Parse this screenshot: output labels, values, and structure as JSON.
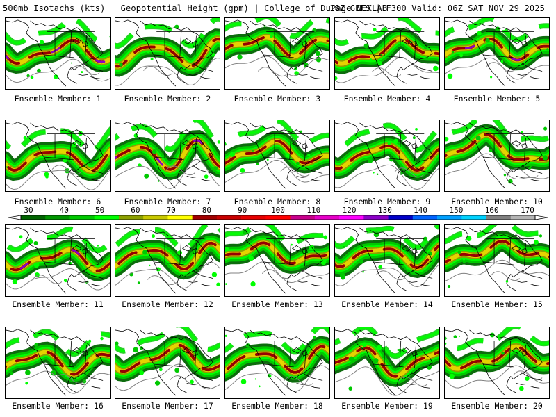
{
  "header": {
    "left": "500mb Isotachs (kts) | Geopotential Height (gpm) | College of DuPage NEXLAB",
    "right": "18Z GEFS | F300 Valid: 06Z SAT NOV 29 2025"
  },
  "members": [
    {
      "label": "Ensemble Member: 1"
    },
    {
      "label": "Ensemble Member: 2"
    },
    {
      "label": "Ensemble Member: 3"
    },
    {
      "label": "Ensemble Member: 4"
    },
    {
      "label": "Ensemble Member: 5"
    },
    {
      "label": "Ensemble Member: 6"
    },
    {
      "label": "Ensemble Member: 7"
    },
    {
      "label": "Ensemble Member: 8"
    },
    {
      "label": "Ensemble Member: 9"
    },
    {
      "label": "Ensemble Member: 10"
    },
    {
      "label": "Ensemble Member: 11"
    },
    {
      "label": "Ensemble Member: 12"
    },
    {
      "label": "Ensemble Member: 13"
    },
    {
      "label": "Ensemble Member: 14"
    },
    {
      "label": "Ensemble Member: 15"
    },
    {
      "label": "Ensemble Member: 16"
    },
    {
      "label": "Ensemble Member: 17"
    },
    {
      "label": "Ensemble Member: 18"
    },
    {
      "label": "Ensemble Member: 19"
    },
    {
      "label": "Ensemble Member: 20"
    }
  ],
  "colorbar": {
    "labels": [
      "30",
      "40",
      "50",
      "60",
      "70",
      "80",
      "90",
      "100",
      "110",
      "120",
      "130",
      "140",
      "150",
      "160",
      "170"
    ],
    "colors": [
      "#006400",
      "#009600",
      "#00c800",
      "#00ff00",
      "#8ca000",
      "#c8c800",
      "#ffff00",
      "#a00000",
      "#c80000",
      "#e60000",
      "#ff0000",
      "#c8008c",
      "#e600c8",
      "#ff00ff",
      "#8c00c8",
      "#0000c8",
      "#0064ff",
      "#00a0ff",
      "#00d2ff",
      "#808080",
      "#b4b4b4"
    ]
  },
  "colors": {
    "green_dark": "#006400",
    "green": "#00c800",
    "green_light": "#00ff00",
    "olive": "#8ca000",
    "yellow": "#e6d200",
    "red_dark": "#960000",
    "red": "#c80000",
    "purple": "#8c00c8",
    "magenta": "#c800c8",
    "height": "#808080",
    "coast": "#000000"
  }
}
